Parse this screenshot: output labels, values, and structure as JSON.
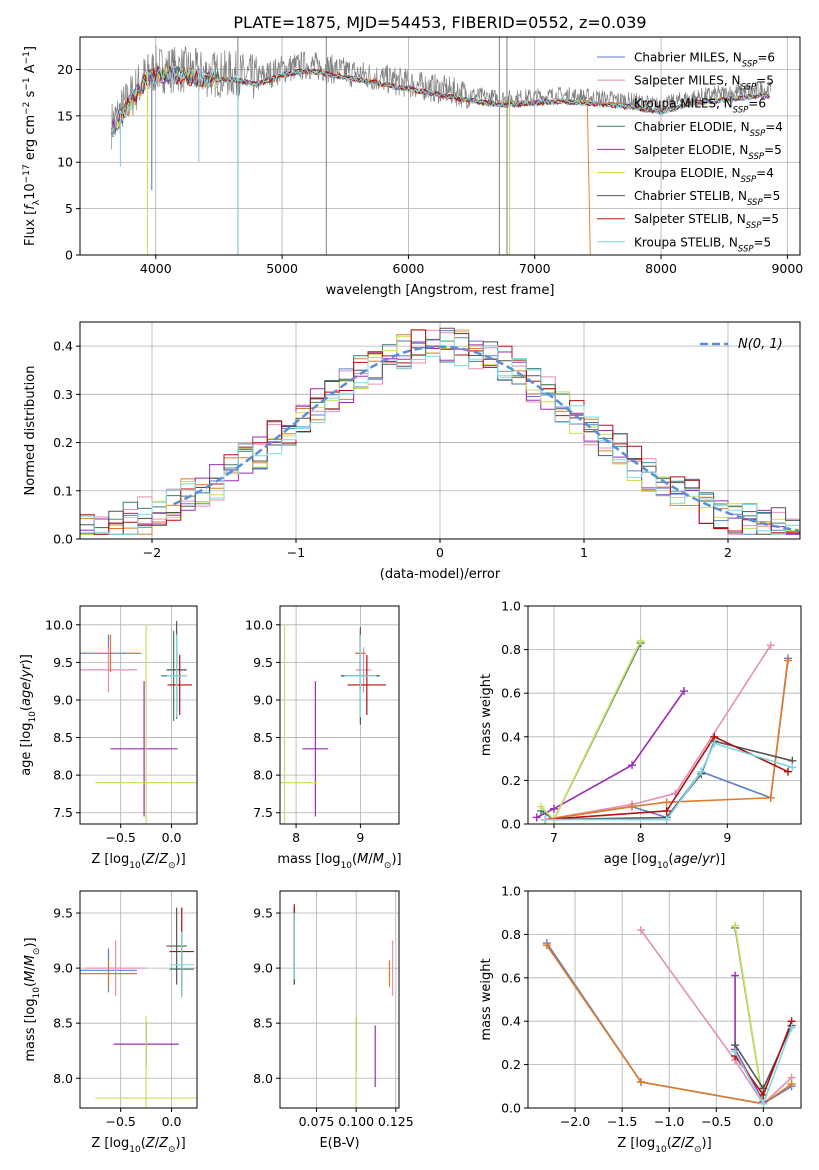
{
  "figure": {
    "title": "PLATE=1875, MJD=54453, FIBERID=0552, z=0.039"
  },
  "colors": {
    "Chabrier MILES": "#5b7fd0",
    "Salpeter MILES": "#e58fb5",
    "Kroupa MILES": "#e07b27",
    "Chabrier ELODIE": "#3a7f70",
    "Salpeter ELODIE": "#9a2fb3",
    "Kroupa ELODIE": "#c9e05a",
    "Chabrier STELIB": "#555555",
    "Salpeter STELIB": "#b01010",
    "Kroupa STELIB": "#7fd8e0",
    "gaussian": "#5b8ed8",
    "data": "#808080"
  },
  "chart_data": [
    {
      "id": "spectrum",
      "type": "line",
      "xlabel": "wavelength [Angstrom, rest frame]",
      "ylabel": "Flux [f_λ10^-17 erg cm^-2 s^-1 A^-1]",
      "xlim": [
        3400,
        9100
      ],
      "ylim": [
        0,
        23.5
      ],
      "xticks": [
        4000,
        5000,
        6000,
        7000,
        8000,
        9000
      ],
      "yticks": [
        0,
        5,
        10,
        15,
        20
      ],
      "legend_position": "upper-right",
      "series": [
        {
          "name": "Chabrier MILES, N_SSP=6",
          "label_main": "Chabrier MILES, N",
          "label_sub": "SSP",
          "label_tail": "=6",
          "key": "Chabrier MILES"
        },
        {
          "name": "Salpeter MILES, N_SSP=5",
          "label_main": "Salpeter MILES, N",
          "label_sub": "SSP",
          "label_tail": "=5",
          "key": "Salpeter MILES"
        },
        {
          "name": "Kroupa MILES, N_SSP=6",
          "label_main": "Kroupa MILES, N",
          "label_sub": "SSP",
          "label_tail": "=6",
          "key": "Kroupa MILES"
        },
        {
          "name": "Chabrier ELODIE, N_SSP=4",
          "label_main": "Chabrier ELODIE, N",
          "label_sub": "SSP",
          "label_tail": "=4",
          "key": "Chabrier ELODIE"
        },
        {
          "name": "Salpeter ELODIE, N_SSP=5",
          "label_main": "Salpeter ELODIE, N",
          "label_sub": "SSP",
          "label_tail": "=5",
          "key": "Salpeter ELODIE"
        },
        {
          "name": "Kroupa ELODIE, N_SSP=4",
          "label_main": "Kroupa ELODIE, N",
          "label_sub": "SSP",
          "label_tail": "=4",
          "key": "Kroupa ELODIE"
        },
        {
          "name": "Chabrier STELIB, N_SSP=5",
          "label_main": "Chabrier STELIB, N",
          "label_sub": "SSP",
          "label_tail": "=5",
          "key": "Chabrier STELIB"
        },
        {
          "name": "Salpeter STELIB, N_SSP=5",
          "label_main": "Salpeter STELIB, N",
          "label_sub": "SSP",
          "label_tail": "=5",
          "key": "Salpeter STELIB"
        },
        {
          "name": "Kroupa STELIB, N_SSP=5",
          "label_main": "Kroupa STELIB, N",
          "label_sub": "SSP",
          "label_tail": "=5",
          "key": "Kroupa STELIB"
        }
      ],
      "continuum": {
        "x": [
          3650,
          3750,
          3900,
          4000,
          4200,
          4400,
          4600,
          4800,
          5000,
          5200,
          5400,
          5600,
          5800,
          6000,
          6200,
          6400,
          6600,
          6800,
          7000,
          7200,
          7400,
          7600,
          7800,
          8000,
          8200,
          8400,
          8600,
          8800
        ],
        "y": [
          14.0,
          16.0,
          19.0,
          20.0,
          20.0,
          19.5,
          19.5,
          19.0,
          20.0,
          20.5,
          20.0,
          19.5,
          19.0,
          18.5,
          18.0,
          17.5,
          17.0,
          16.8,
          17.0,
          17.2,
          17.0,
          16.8,
          16.5,
          16.0,
          16.8,
          17.2,
          17.5,
          17.8
        ]
      },
      "model_end_wavelength": [
        9000,
        9000,
        7420,
        9000,
        9000,
        9000,
        9000,
        9000,
        9000
      ],
      "absorption_features": [
        {
          "x": 3934,
          "y": 0,
          "series": "Kroupa ELODIE"
        },
        {
          "x": 4650,
          "y": 0,
          "series": "Kroupa STELIB"
        },
        {
          "x": 6800,
          "y": 0,
          "series": "Kroupa ELODIE"
        },
        {
          "x": 3968,
          "y": 7,
          "series": "Chabrier MILES"
        },
        {
          "x": 4340,
          "y": 10,
          "series": "Kroupa STELIB"
        },
        {
          "x": 3720,
          "y": 9.5,
          "series": "Kroupa STELIB"
        }
      ],
      "data_spikes": [
        4650,
        5350,
        6720,
        6780
      ]
    },
    {
      "id": "residuals",
      "type": "bar",
      "xlabel": "(data-model)/error",
      "ylabel": "Normed distribution",
      "xlim": [
        -2.5,
        2.5
      ],
      "ylim": [
        0,
        0.45
      ],
      "xticks": [
        -2,
        -1,
        0,
        1,
        2
      ],
      "yticks": [
        0,
        0.1,
        0.2,
        0.3,
        0.4
      ],
      "legend": {
        "name": "N(0,1)",
        "position": "upper-right"
      },
      "bin_width": 0.1,
      "gaussian": {
        "mean": 0,
        "sigma": 1
      }
    },
    {
      "id": "age-vs-Z",
      "type": "scatter",
      "xlabel": "Z [log10(Z/Z⊙)]",
      "ylabel": "age [log10(age/yr)]",
      "xlim": [
        -0.9,
        0.25
      ],
      "ylim": [
        7.35,
        10.25
      ],
      "xticks": [
        -0.5,
        0.0
      ],
      "yticks": [
        7.5,
        8.0,
        8.5,
        9.0,
        9.5,
        10.0
      ],
      "points": [
        {
          "series": "Chabrier MILES",
          "x": -0.62,
          "y": 9.62,
          "xerr": 0.28,
          "yerr": 0.25
        },
        {
          "series": "Salpeter MILES",
          "x": -0.62,
          "y": 9.4,
          "xerr": 0.28,
          "yerr": 0.3
        },
        {
          "series": "Kroupa MILES",
          "x": -0.6,
          "y": 9.62,
          "xerr": 0.3,
          "yerr": 0.25
        },
        {
          "series": "Chabrier ELODIE",
          "x": 0.02,
          "y": 9.32,
          "xerr": 0.12,
          "yerr": 0.6
        },
        {
          "series": "Salpeter ELODIE",
          "x": -0.27,
          "y": 8.35,
          "xerr": 0.33,
          "yerr": 0.9
        },
        {
          "series": "Kroupa ELODIE",
          "x": -0.25,
          "y": 7.9,
          "xerr": 0.5,
          "yerr": 2.1
        },
        {
          "series": "Chabrier STELIB",
          "x": 0.05,
          "y": 9.4,
          "xerr": 0.1,
          "yerr": 0.65
        },
        {
          "series": "Salpeter STELIB",
          "x": 0.08,
          "y": 9.2,
          "xerr": 0.12,
          "yerr": 0.4
        },
        {
          "series": "Kroupa STELIB",
          "x": 0.05,
          "y": 9.32,
          "xerr": 0.1,
          "yerr": 0.55
        }
      ]
    },
    {
      "id": "age-vs-mass",
      "type": "scatter",
      "xlabel": "mass [log10(M/M⊙)]",
      "ylabel": "",
      "xlim": [
        7.75,
        9.6
      ],
      "ylim": [
        7.35,
        10.25
      ],
      "xticks": [
        8,
        9
      ],
      "yticks": [
        7.5,
        8.0,
        8.5,
        9.0,
        9.5,
        10.0
      ],
      "points": [
        {
          "series": "Chabrier MILES",
          "x": 9.0,
          "y": 9.62,
          "xerr": 0.08,
          "yerr": 0.25
        },
        {
          "series": "Salpeter MILES",
          "x": 9.05,
          "y": 9.4,
          "xerr": 0.12,
          "yerr": 0.3
        },
        {
          "series": "Kroupa MILES",
          "x": 9.0,
          "y": 9.62,
          "xerr": 0.08,
          "yerr": 0.25
        },
        {
          "series": "Chabrier ELODIE",
          "x": 9.0,
          "y": 9.32,
          "xerr": 0.3,
          "yerr": 0.6
        },
        {
          "series": "Salpeter ELODIE",
          "x": 8.3,
          "y": 8.35,
          "xerr": 0.2,
          "yerr": 0.9
        },
        {
          "series": "Kroupa ELODIE",
          "x": 7.82,
          "y": 7.9,
          "xerr": 0.5,
          "yerr": 2.1
        },
        {
          "series": "Chabrier STELIB",
          "x": 9.0,
          "y": 9.32,
          "xerr": 0.3,
          "yerr": 0.65
        },
        {
          "series": "Salpeter STELIB",
          "x": 9.1,
          "y": 9.2,
          "xerr": 0.3,
          "yerr": 0.4
        },
        {
          "series": "Kroupa STELIB",
          "x": 9.0,
          "y": 9.32,
          "xerr": 0.25,
          "yerr": 0.55
        }
      ]
    },
    {
      "id": "weight-vs-age",
      "type": "line",
      "xlabel": "age [log10(age/yr)]",
      "ylabel": "mass weight",
      "xlim": [
        6.7,
        9.85
      ],
      "ylim": [
        0,
        1.0
      ],
      "xticks": [
        7,
        8,
        9
      ],
      "yticks": [
        0.0,
        0.2,
        0.4,
        0.6,
        0.8,
        1.0
      ],
      "series": [
        {
          "key": "Chabrier MILES",
          "x": [
            6.9,
            7.9,
            8.3,
            8.7,
            9.5,
            9.7
          ],
          "y": [
            0.02,
            0.08,
            0.03,
            0.24,
            0.12,
            0.76
          ]
        },
        {
          "key": "Salpeter MILES",
          "x": [
            6.9,
            7.9,
            8.4,
            9.5
          ],
          "y": [
            0.02,
            0.09,
            0.14,
            0.82
          ]
        },
        {
          "key": "Kroupa MILES",
          "x": [
            6.9,
            7.9,
            8.3,
            9.5,
            9.7
          ],
          "y": [
            0.02,
            0.08,
            0.1,
            0.12,
            0.75
          ]
        },
        {
          "key": "Chabrier ELODIE",
          "x": [
            6.85,
            7.0,
            8.0
          ],
          "y": [
            0.06,
            0.02,
            0.83
          ]
        },
        {
          "key": "Salpeter ELODIE",
          "x": [
            6.8,
            7.0,
            7.9,
            8.5
          ],
          "y": [
            0.03,
            0.07,
            0.27,
            0.61
          ]
        },
        {
          "key": "Kroupa ELODIE",
          "x": [
            6.85,
            7.0,
            8.0
          ],
          "y": [
            0.08,
            0.02,
            0.84
          ]
        },
        {
          "key": "Chabrier STELIB",
          "x": [
            6.9,
            8.3,
            8.7,
            8.85,
            9.75
          ],
          "y": [
            0.02,
            0.03,
            0.23,
            0.38,
            0.29
          ]
        },
        {
          "key": "Salpeter STELIB",
          "x": [
            6.9,
            8.3,
            8.85,
            9.7
          ],
          "y": [
            0.02,
            0.06,
            0.4,
            0.24
          ]
        },
        {
          "key": "Kroupa STELIB",
          "x": [
            6.9,
            8.3,
            8.7,
            8.85,
            9.75
          ],
          "y": [
            0.02,
            0.02,
            0.24,
            0.37,
            0.26
          ]
        }
      ]
    },
    {
      "id": "mass-vs-Z",
      "type": "scatter",
      "xlabel": "Z [log10(Z/Z⊙)]",
      "ylabel": "mass [log10(M/M⊙)]",
      "xlim": [
        -0.9,
        0.25
      ],
      "ylim": [
        7.73,
        9.7
      ],
      "xticks": [
        -0.5,
        0.0
      ],
      "yticks": [
        8.0,
        8.5,
        9.0,
        9.5
      ],
      "points": [
        {
          "series": "Chabrier MILES",
          "x": -0.62,
          "y": 8.98,
          "xerr": 0.28,
          "yerr": 0.2
        },
        {
          "series": "Salpeter MILES",
          "x": -0.55,
          "y": 9.0,
          "xerr": 0.3,
          "yerr": 0.25
        },
        {
          "series": "Kroupa MILES",
          "x": -0.62,
          "y": 8.95,
          "xerr": 0.28,
          "yerr": 0.12
        },
        {
          "series": "Chabrier ELODIE",
          "x": 0.1,
          "y": 8.99,
          "xerr": 0.12,
          "yerr": 0.12
        },
        {
          "series": "Salpeter ELODIE",
          "x": -0.25,
          "y": 8.31,
          "xerr": 0.32,
          "yerr": 0.2
        },
        {
          "series": "Kroupa ELODIE",
          "x": -0.25,
          "y": 7.82,
          "xerr": 0.5,
          "yerr": 0.75
        },
        {
          "series": "Chabrier STELIB",
          "x": 0.05,
          "y": 9.2,
          "xerr": 0.1,
          "yerr": 0.35
        },
        {
          "series": "Salpeter STELIB",
          "x": 0.1,
          "y": 9.15,
          "xerr": 0.12,
          "yerr": 0.4
        },
        {
          "series": "Kroupa STELIB",
          "x": 0.1,
          "y": 9.03,
          "xerr": 0.12,
          "yerr": 0.3
        }
      ]
    },
    {
      "id": "mass-vs-EBV",
      "type": "scatter",
      "xlabel": "E(B-V)",
      "ylabel": "",
      "xlim": [
        0.052,
        0.127
      ],
      "ylim": [
        7.73,
        9.7
      ],
      "xticks": [
        0.075,
        0.1,
        0.125
      ],
      "yticks": [
        8.0,
        8.5,
        9.0,
        9.5
      ],
      "points": [
        {
          "series": "Chabrier MILES",
          "x": 0.061,
          "y": 9.2,
          "xerr": 0.0,
          "yerr": 0.35
        },
        {
          "series": "Salpeter MILES",
          "x": 0.123,
          "y": 9.0,
          "xerr": 0.0,
          "yerr": 0.25
        },
        {
          "series": "Kroupa MILES",
          "x": 0.121,
          "y": 8.95,
          "xerr": 0.0,
          "yerr": 0.12
        },
        {
          "series": "Chabrier ELODIE",
          "x": 0.1,
          "y": 8.31,
          "xerr": 0.0,
          "yerr": 0.25
        },
        {
          "series": "Salpeter ELODIE",
          "x": 0.112,
          "y": 8.2,
          "xerr": 0.0,
          "yerr": 0.28
        },
        {
          "series": "Kroupa ELODIE",
          "x": 0.1,
          "y": 7.82,
          "xerr": 0.0,
          "yerr": 0.75
        },
        {
          "series": "Chabrier STELIB",
          "x": 0.061,
          "y": 9.2,
          "xerr": 0.0,
          "yerr": 0.35
        },
        {
          "series": "Salpeter STELIB",
          "x": 0.061,
          "y": 9.3,
          "xerr": 0.0,
          "yerr": 0.28
        },
        {
          "series": "Kroupa STELIB",
          "x": 0.061,
          "y": 9.2,
          "xerr": 0.0,
          "yerr": 0.3
        }
      ]
    },
    {
      "id": "weight-vs-Z",
      "type": "line",
      "xlabel": "Z [log10(Z/Z⊙)]",
      "ylabel": "mass weight",
      "xlim": [
        -2.5,
        0.4
      ],
      "ylim": [
        0,
        1.0
      ],
      "xticks": [
        -2.0,
        -1.5,
        -1.0,
        -0.5,
        0.0
      ],
      "yticks": [
        0.0,
        0.2,
        0.4,
        0.6,
        0.8,
        1.0
      ],
      "series": [
        {
          "key": "Chabrier MILES",
          "x": [
            -2.3,
            -1.3,
            0.0,
            0.3
          ],
          "y": [
            0.76,
            0.12,
            0.02,
            0.1
          ]
        },
        {
          "key": "Salpeter MILES",
          "x": [
            -1.3,
            -0.3,
            0.0,
            0.3
          ],
          "y": [
            0.82,
            0.22,
            0.02,
            0.14
          ]
        },
        {
          "key": "Kroupa MILES",
          "x": [
            -2.3,
            -1.3,
            0.0,
            0.3
          ],
          "y": [
            0.75,
            0.12,
            0.02,
            0.11
          ]
        },
        {
          "key": "Chabrier ELODIE",
          "x": [
            -0.3,
            0.0
          ],
          "y": [
            0.83,
            0.02
          ]
        },
        {
          "key": "Salpeter ELODIE",
          "x": [
            -0.3,
            -0.3,
            0.0
          ],
          "y": [
            0.61,
            0.27,
            0.03
          ]
        },
        {
          "key": "Kroupa ELODIE",
          "x": [
            -0.3,
            0.0
          ],
          "y": [
            0.84,
            0.02
          ]
        },
        {
          "key": "Chabrier STELIB",
          "x": [
            -0.3,
            0.0,
            0.3
          ],
          "y": [
            0.29,
            0.09,
            0.38
          ]
        },
        {
          "key": "Salpeter STELIB",
          "x": [
            -0.3,
            0.0,
            0.3
          ],
          "y": [
            0.24,
            0.06,
            0.4
          ]
        },
        {
          "key": "Kroupa STELIB",
          "x": [
            -0.3,
            0.0,
            0.3
          ],
          "y": [
            0.26,
            0.02,
            0.37
          ]
        }
      ]
    }
  ]
}
